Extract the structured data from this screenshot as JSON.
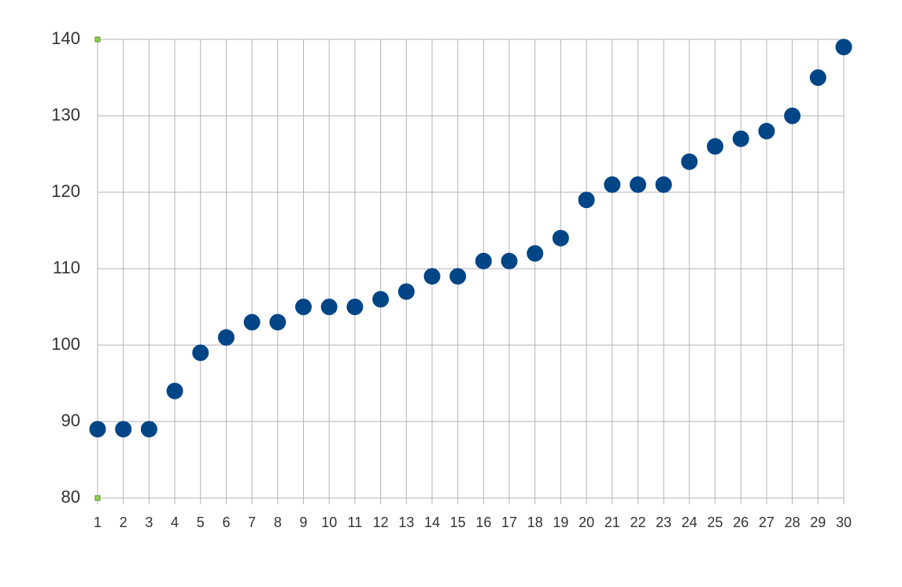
{
  "chart_data": {
    "type": "scatter",
    "x": [
      1,
      2,
      3,
      4,
      5,
      6,
      7,
      8,
      9,
      10,
      11,
      12,
      13,
      14,
      15,
      16,
      17,
      18,
      19,
      20,
      21,
      22,
      23,
      24,
      25,
      26,
      27,
      28,
      29,
      30
    ],
    "values": [
      89,
      89,
      89,
      94,
      99,
      101,
      103,
      103,
      105,
      105,
      105,
      106,
      107,
      109,
      109,
      111,
      111,
      112,
      114,
      119,
      121,
      121,
      121,
      124,
      126,
      127,
      128,
      130,
      135,
      139
    ],
    "color": "#004586",
    "xlim": [
      1,
      30
    ],
    "xticks": [
      1,
      2,
      3,
      4,
      5,
      6,
      7,
      8,
      9,
      10,
      11,
      12,
      13,
      14,
      15,
      16,
      17,
      18,
      19,
      20,
      21,
      22,
      23,
      24,
      25,
      26,
      27,
      28,
      29,
      30
    ],
    "ylim": [
      80,
      140
    ],
    "yticks": [
      80,
      90,
      100,
      110,
      120,
      130,
      140
    ],
    "grid": true
  }
}
